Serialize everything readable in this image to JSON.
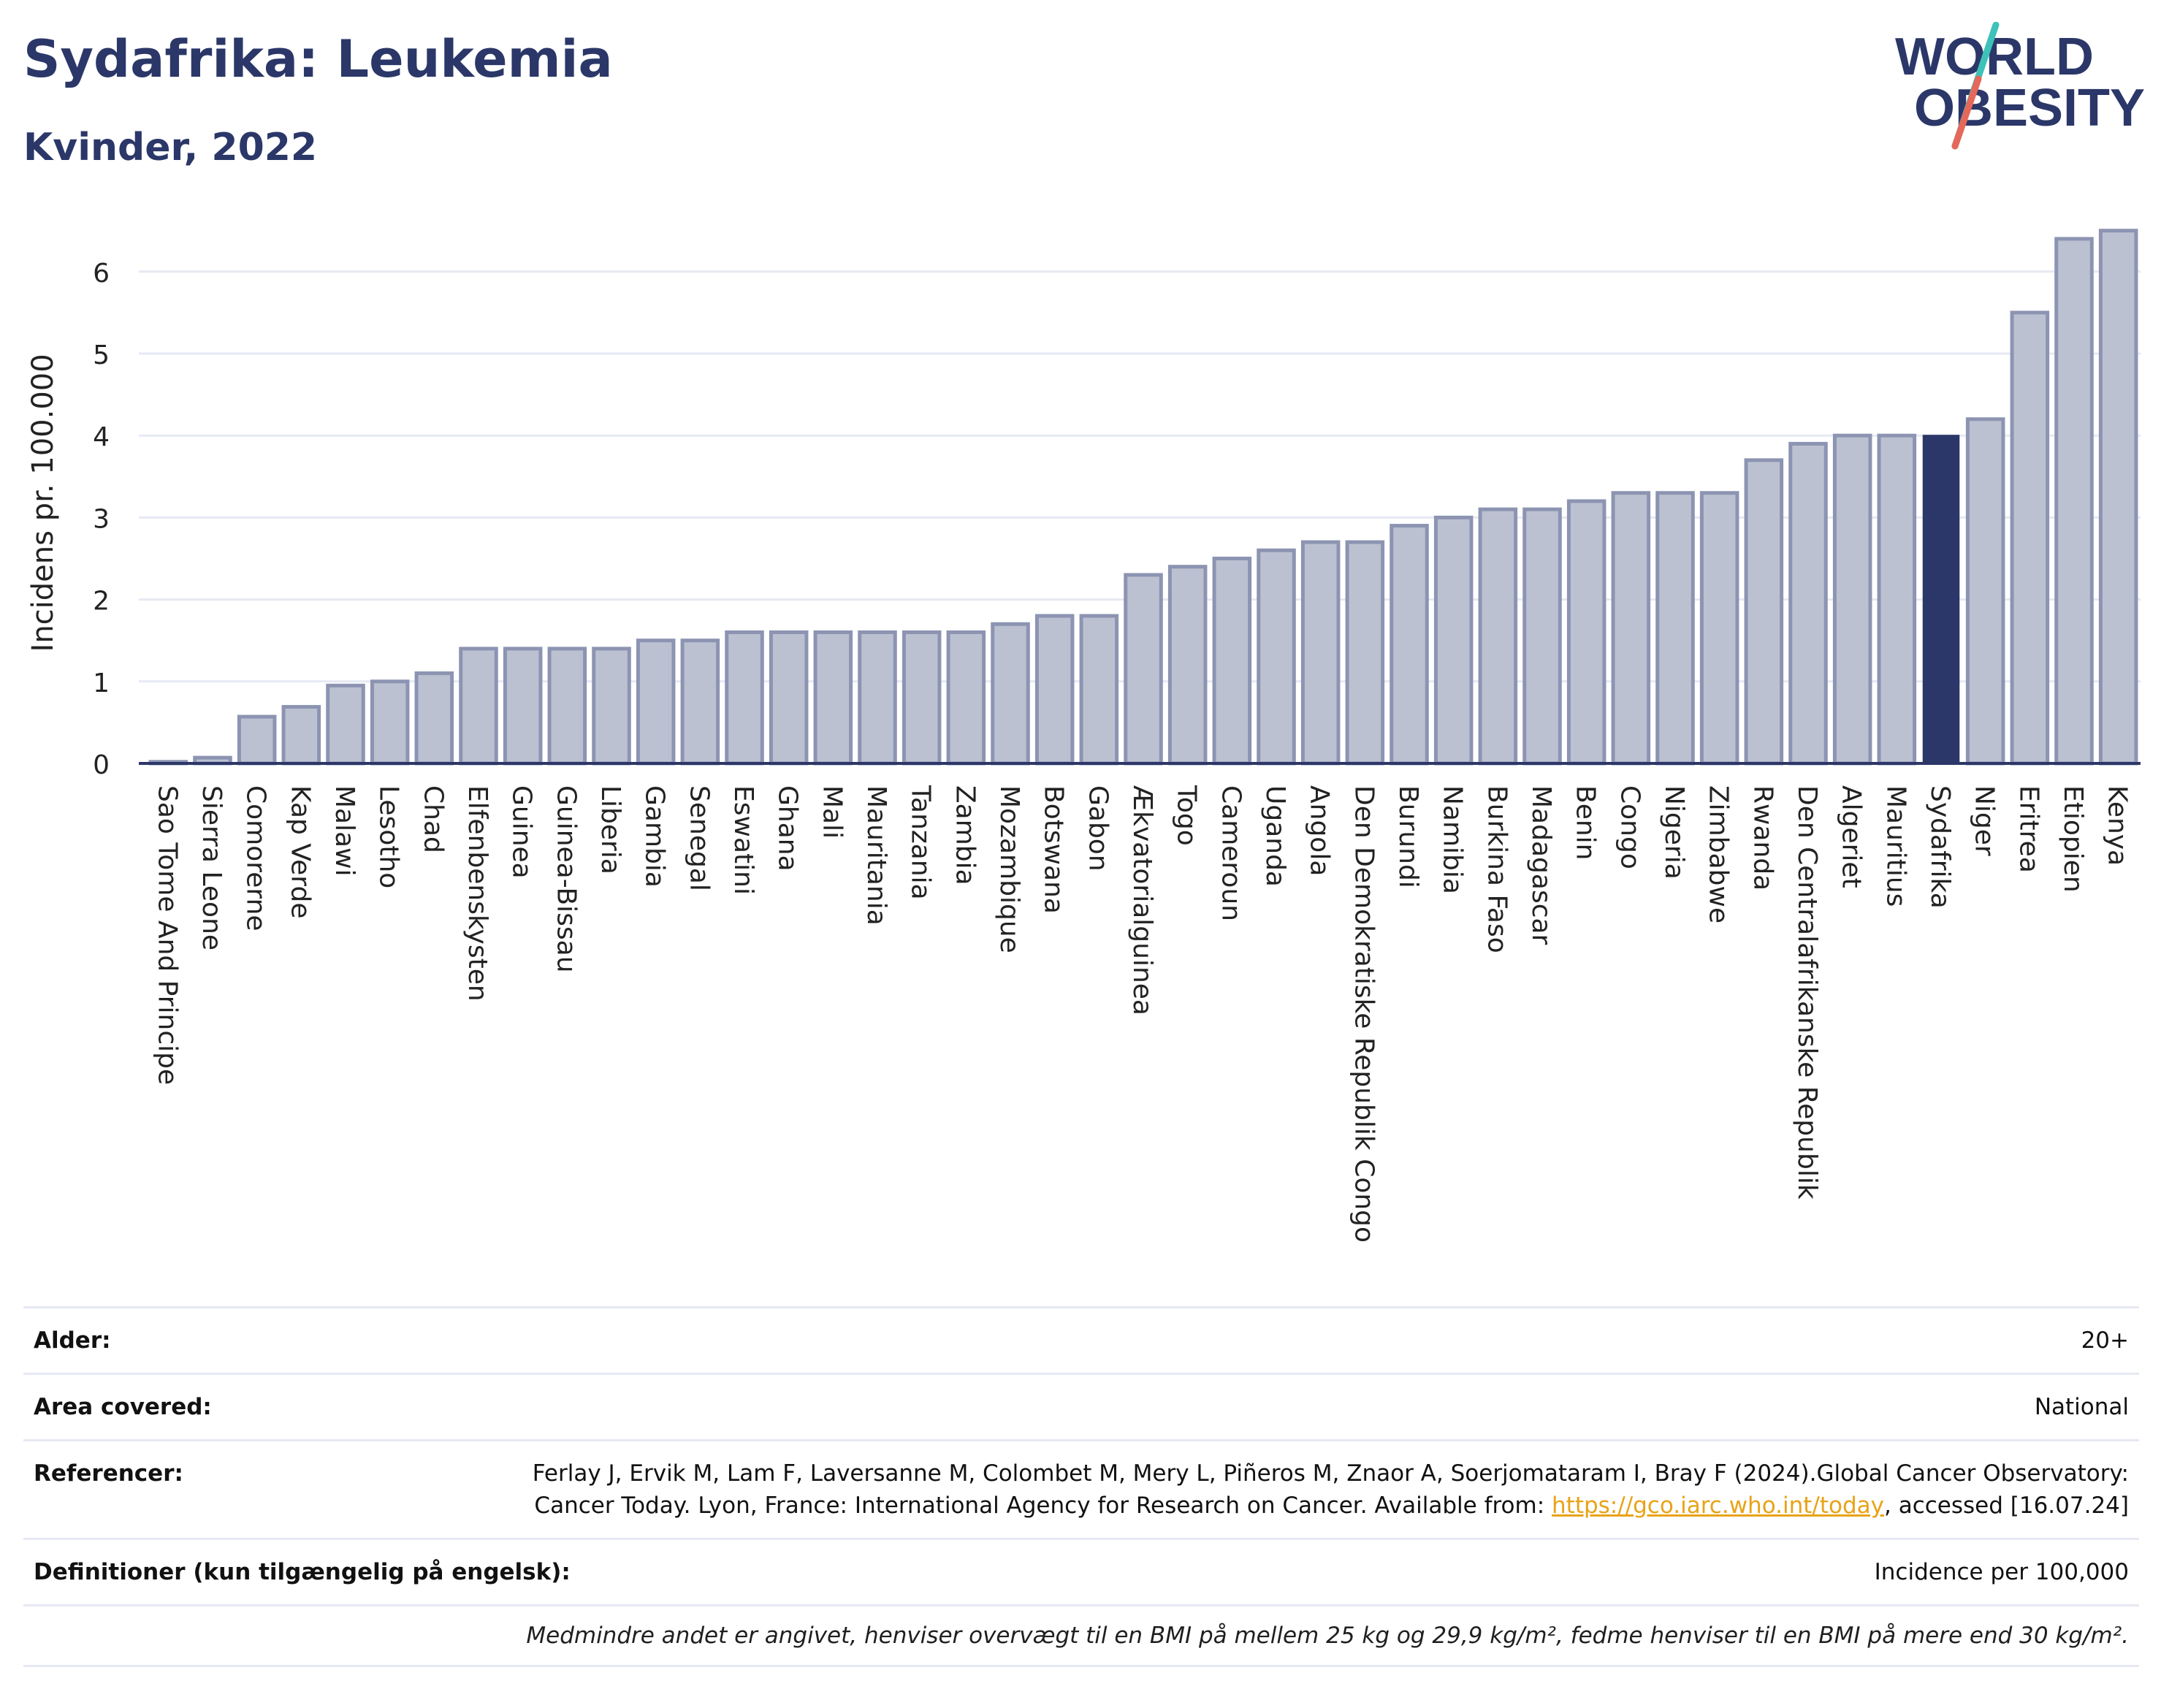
{
  "header": {
    "title": "Sydafrika: Leukemia",
    "subtitle": "Kvinder, 2022",
    "logo_line1": "WORLD",
    "logo_line2": "OBESITY"
  },
  "chart_data": {
    "type": "bar",
    "ylabel": "Incidens pr. 100.000",
    "ylim": [
      0,
      6.6
    ],
    "yticks": [
      0,
      1,
      2,
      3,
      4,
      5,
      6
    ],
    "grid": true,
    "highlight": "Sydafrika",
    "colors": {
      "bar": "#bcc1d1",
      "bar_edge": "#8c94b2",
      "highlight": "#2b3768",
      "grid": "#e6e9f3"
    },
    "categories": [
      "Sao Tome And Principe",
      "Sierra Leone",
      "Comorerne",
      "Kap Verde",
      "Malawi",
      "Lesotho",
      "Chad",
      "Elfenbenskysten",
      "Guinea",
      "Guinea-Bissau",
      "Liberia",
      "Gambia",
      "Senegal",
      "Eswatini",
      "Ghana",
      "Mali",
      "Mauritania",
      "Tanzania",
      "Zambia",
      "Mozambique",
      "Botswana",
      "Gabon",
      "Ækvatorialguinea",
      "Togo",
      "Cameroun",
      "Uganda",
      "Angola",
      "Den Demokratiske Republik Congo",
      "Burundi",
      "Namibia",
      "Burkina Faso",
      "Madagascar",
      "Benin",
      "Congo",
      "Nigeria",
      "Zimbabwe",
      "Rwanda",
      "Den Centralafrikanske Republik",
      "Algeriet",
      "Mauritius",
      "Sydafrika",
      "Niger",
      "Eritrea",
      "Etiopien",
      "Kenya"
    ],
    "values": [
      0.02,
      0.07,
      0.57,
      0.69,
      0.95,
      1.0,
      1.1,
      1.4,
      1.4,
      1.4,
      1.4,
      1.5,
      1.5,
      1.6,
      1.6,
      1.6,
      1.6,
      1.6,
      1.6,
      1.7,
      1.8,
      1.8,
      2.3,
      2.4,
      2.5,
      2.6,
      2.7,
      2.7,
      2.9,
      3.0,
      3.1,
      3.1,
      3.2,
      3.3,
      3.3,
      3.3,
      3.7,
      3.9,
      4.0,
      4.0,
      4.0,
      4.2,
      5.5,
      6.4,
      6.5
    ]
  },
  "info": {
    "age_label": "Alder:",
    "age_value": "20+",
    "area_label": "Area covered:",
    "area_value": "National",
    "refs_label": "Referencer:",
    "refs_text_1": "Ferlay J, Ervik M, Lam F, Laversanne M, Colombet M, Mery L, Piñeros M, Znaor A, Soerjomataram I, Bray F (2024).Global Cancer Observatory: Cancer Today. Lyon, France: International Agency for Research on Cancer. Available from: ",
    "refs_link": "https://gco.iarc.who.int/today",
    "refs_text_2": ", accessed [16.07.24]",
    "def_label": "Definitioner (kun tilgængelig på engelsk):",
    "def_value": "Incidence per 100,000",
    "note": "Medmindre andet er angivet, henviser overvægt til en BMI på mellem 25 kg og 29,9 kg/m², fedme henviser til en BMI på mere end 30 kg/m²."
  }
}
